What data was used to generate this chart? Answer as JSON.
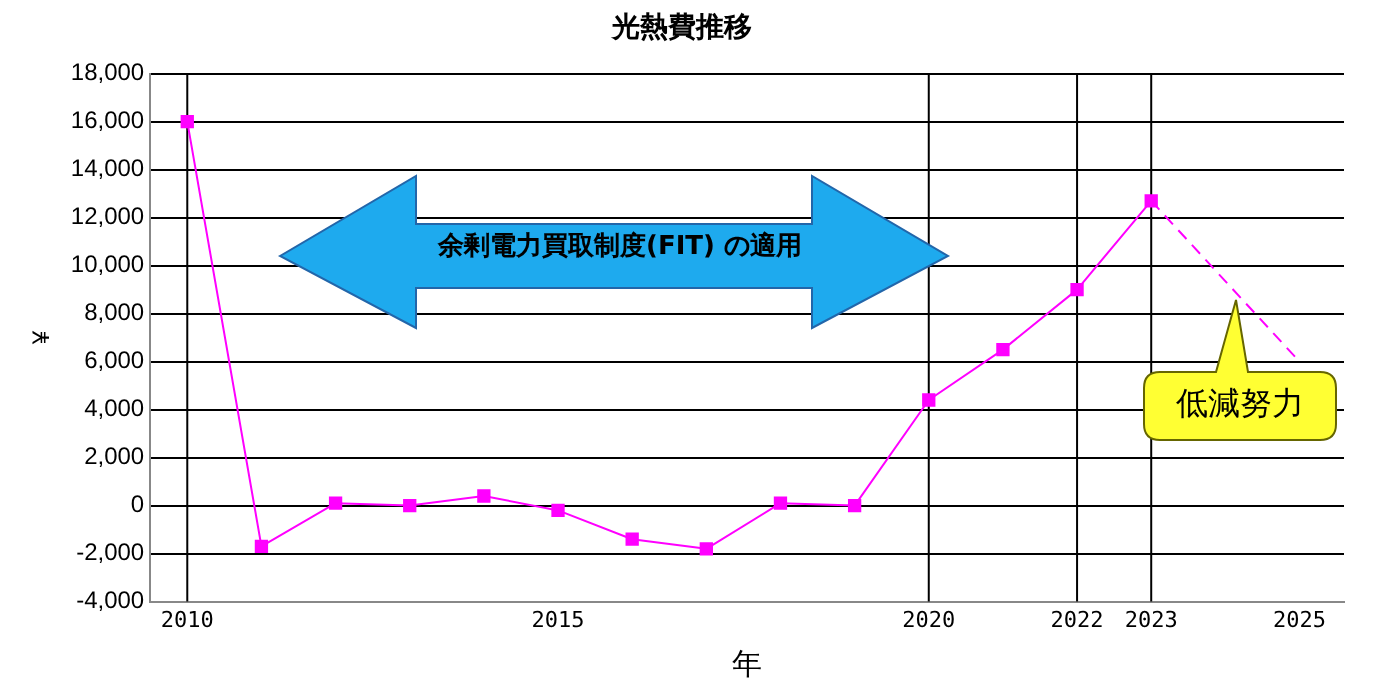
{
  "chart_data": {
    "type": "line",
    "title": "光熱費推移",
    "xlabel": "年",
    "ylabel": "¥",
    "xlim": [
      2009.5,
      2025.6
    ],
    "xticks": [
      2010,
      2015,
      2020,
      2022,
      2023,
      2025
    ],
    "ylim": [
      -4000,
      18000
    ],
    "yticks": [
      {
        "value": -4000,
        "label": "-4,000"
      },
      {
        "value": -2000,
        "label": "-2,000"
      },
      {
        "value": 0,
        "label": "0"
      },
      {
        "value": 2000,
        "label": "2,000"
      },
      {
        "value": 4000,
        "label": "4,000"
      },
      {
        "value": 6000,
        "label": "6,000"
      },
      {
        "value": 8000,
        "label": "8,000"
      },
      {
        "value": 10000,
        "label": "10,000"
      },
      {
        "value": 12000,
        "label": "12,000"
      },
      {
        "value": 14000,
        "label": "14,000"
      },
      {
        "value": 16000,
        "label": "16,000"
      },
      {
        "value": 18000,
        "label": "18,000"
      }
    ],
    "grid": "y",
    "legend": false,
    "series": [
      {
        "type": "line",
        "color": "#ff00ff",
        "marker": "square",
        "line_style": "solid",
        "x": [
          2010,
          2011,
          2012,
          2013,
          2014,
          2015,
          2016,
          2017,
          2018,
          2019,
          2020,
          2021,
          2022,
          2023
        ],
        "values": [
          16000,
          -1700,
          100,
          0,
          400,
          -200,
          -1400,
          -1800,
          100,
          0,
          4400,
          6500,
          9000,
          12700
        ]
      },
      {
        "type": "line",
        "color": "#ff00ff",
        "marker": "none",
        "line_style": "dashed",
        "x": [
          2023,
          2025
        ],
        "values": [
          12700,
          6000
        ]
      }
    ],
    "ref_lines": [
      {
        "axis": "x",
        "value": 2010,
        "color": "#000000"
      },
      {
        "axis": "x",
        "value": 2020,
        "color": "#000000"
      },
      {
        "axis": "x",
        "value": 2022,
        "color": "#000000"
      },
      {
        "axis": "x",
        "value": 2023,
        "color": "#000000"
      }
    ],
    "annotations": [
      "余剰電力買取制度(FIT) の適用",
      "低減努力"
    ]
  }
}
